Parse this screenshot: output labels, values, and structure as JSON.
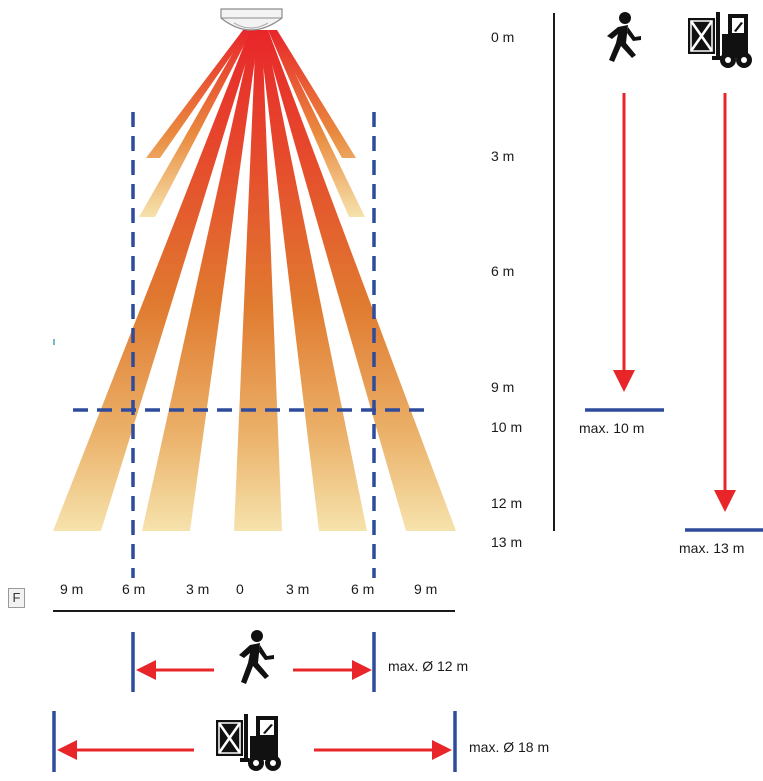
{
  "figure_label": "F",
  "depth_labels": {
    "d0": "0 m",
    "d3": "3 m",
    "d6": "6 m",
    "d9": "9 m",
    "d10": "10 m",
    "d12": "12 m",
    "d13": "13 m"
  },
  "width_labels": {
    "w9l": "9 m",
    "w6l": "6 m",
    "w3l": "3 m",
    "w0": "0",
    "w3r": "3 m",
    "w6r": "6 m",
    "w9r": "9 m"
  },
  "person_range": "max. 10 m",
  "forklift_range": "max. 13 m",
  "person_diameter": "max. Ø 12 m",
  "forklift_diameter": "max. Ø 18 m",
  "colors": {
    "beam_dark": "#e8262a",
    "beam_mid": "#e07b30",
    "beam_light": "#f4e0a8",
    "arrow": "#e8262a",
    "zone_line": "#2f4c9c"
  },
  "icons": [
    "detector-icon",
    "walking-person-icon",
    "forklift-icon"
  ]
}
